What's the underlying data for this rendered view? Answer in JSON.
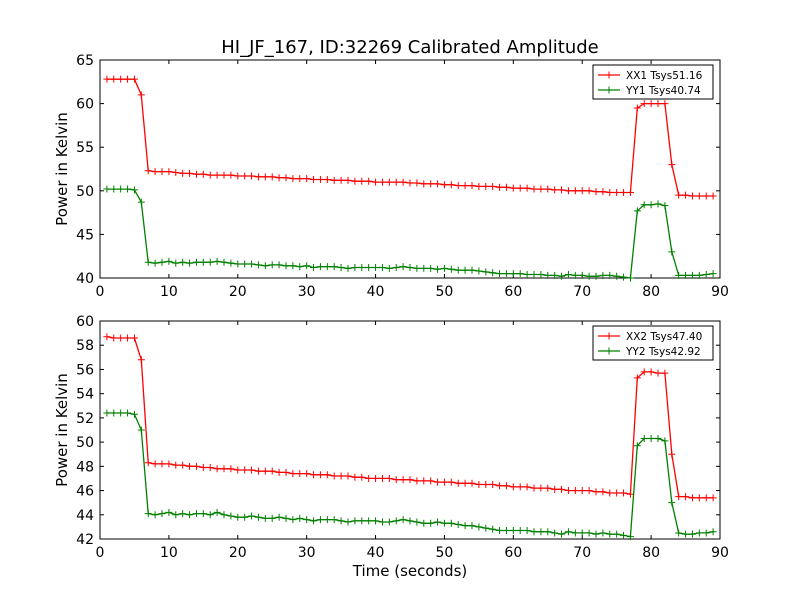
{
  "title": "HI_JF_167, ID:32269 Calibrated Amplitude",
  "chart_data": [
    {
      "type": "line",
      "ylabel": "Power in Kelvin",
      "xlabel": "",
      "xlim": [
        0,
        90
      ],
      "ylim": [
        40,
        65
      ],
      "xticks": [
        "0",
        "10",
        "20",
        "30",
        "40",
        "50",
        "60",
        "70",
        "80",
        "90"
      ],
      "yticks": [
        "40",
        "45",
        "50",
        "55",
        "60",
        "65"
      ],
      "legend_position": "top-right",
      "series": [
        {
          "name": "XX1 Tsys51.16",
          "color": "#ff0000",
          "x": [
            1,
            2,
            3,
            4,
            5,
            6,
            7,
            8,
            9,
            10,
            11,
            12,
            13,
            14,
            15,
            16,
            17,
            18,
            19,
            20,
            21,
            22,
            23,
            24,
            25,
            26,
            27,
            28,
            29,
            30,
            31,
            32,
            33,
            34,
            35,
            36,
            37,
            38,
            39,
            40,
            41,
            42,
            43,
            44,
            45,
            46,
            47,
            48,
            49,
            50,
            51,
            52,
            53,
            54,
            55,
            56,
            57,
            58,
            59,
            60,
            61,
            62,
            63,
            64,
            65,
            66,
            67,
            68,
            69,
            70,
            71,
            72,
            73,
            74,
            75,
            76,
            77,
            78,
            79,
            80,
            81,
            82,
            83,
            84,
            85,
            86,
            87,
            88,
            89
          ],
          "y": [
            62.8,
            62.8,
            62.8,
            62.8,
            62.8,
            61.0,
            52.3,
            52.2,
            52.2,
            52.2,
            52.1,
            52.0,
            52.0,
            51.9,
            51.9,
            51.8,
            51.8,
            51.8,
            51.8,
            51.7,
            51.7,
            51.7,
            51.6,
            51.6,
            51.6,
            51.5,
            51.5,
            51.4,
            51.4,
            51.4,
            51.3,
            51.3,
            51.3,
            51.2,
            51.2,
            51.2,
            51.1,
            51.1,
            51.1,
            51.0,
            51.0,
            51.0,
            51.0,
            51.0,
            50.9,
            50.9,
            50.8,
            50.8,
            50.8,
            50.7,
            50.7,
            50.6,
            50.6,
            50.6,
            50.5,
            50.5,
            50.5,
            50.4,
            50.4,
            50.3,
            50.3,
            50.3,
            50.2,
            50.2,
            50.2,
            50.1,
            50.1,
            50.0,
            50.0,
            50.0,
            50.0,
            49.9,
            49.9,
            49.8,
            49.8,
            49.8,
            49.8,
            59.5,
            60.0,
            60.0,
            60.0,
            60.0,
            53.0,
            49.5,
            49.5,
            49.4,
            49.4,
            49.4,
            49.4
          ]
        },
        {
          "name": "YY1 Tsys40.74",
          "color": "#008000",
          "x": [
            1,
            2,
            3,
            4,
            5,
            6,
            7,
            8,
            9,
            10,
            11,
            12,
            13,
            14,
            15,
            16,
            17,
            18,
            19,
            20,
            21,
            22,
            23,
            24,
            25,
            26,
            27,
            28,
            29,
            30,
            31,
            32,
            33,
            34,
            35,
            36,
            37,
            38,
            39,
            40,
            41,
            42,
            43,
            44,
            45,
            46,
            47,
            48,
            49,
            50,
            51,
            52,
            53,
            54,
            55,
            56,
            57,
            58,
            59,
            60,
            61,
            62,
            63,
            64,
            65,
            66,
            67,
            68,
            69,
            70,
            71,
            72,
            73,
            74,
            75,
            76,
            77,
            78,
            79,
            80,
            81,
            82,
            83,
            84,
            85,
            86,
            87,
            88,
            89
          ],
          "y": [
            50.2,
            50.2,
            50.2,
            50.2,
            50.1,
            48.7,
            41.8,
            41.7,
            41.8,
            41.9,
            41.7,
            41.8,
            41.7,
            41.8,
            41.8,
            41.8,
            41.9,
            41.8,
            41.7,
            41.6,
            41.6,
            41.6,
            41.5,
            41.4,
            41.5,
            41.5,
            41.4,
            41.4,
            41.3,
            41.4,
            41.2,
            41.3,
            41.3,
            41.3,
            41.2,
            41.1,
            41.2,
            41.2,
            41.2,
            41.2,
            41.2,
            41.1,
            41.2,
            41.3,
            41.2,
            41.1,
            41.1,
            41.1,
            41.0,
            41.1,
            41.0,
            40.9,
            40.9,
            40.9,
            40.8,
            40.7,
            40.6,
            40.5,
            40.5,
            40.5,
            40.5,
            40.4,
            40.4,
            40.4,
            40.3,
            40.3,
            40.2,
            40.4,
            40.3,
            40.3,
            40.2,
            40.2,
            40.3,
            40.3,
            40.2,
            40.1,
            40.0,
            47.7,
            48.4,
            48.4,
            48.5,
            48.3,
            43.0,
            40.3,
            40.3,
            40.3,
            40.3,
            40.4,
            40.5
          ]
        }
      ]
    },
    {
      "type": "line",
      "ylabel": "Power in Kelvin",
      "xlabel": "Time (seconds)",
      "xlim": [
        0,
        90
      ],
      "ylim": [
        42,
        60
      ],
      "xticks": [
        "0",
        "10",
        "20",
        "30",
        "40",
        "50",
        "60",
        "70",
        "80",
        "90"
      ],
      "yticks": [
        "42",
        "44",
        "46",
        "48",
        "50",
        "52",
        "54",
        "56",
        "58",
        "60"
      ],
      "legend_position": "top-right",
      "series": [
        {
          "name": "XX2 Tsys47.40",
          "color": "#ff0000",
          "x": [
            1,
            2,
            3,
            4,
            5,
            6,
            7,
            8,
            9,
            10,
            11,
            12,
            13,
            14,
            15,
            16,
            17,
            18,
            19,
            20,
            21,
            22,
            23,
            24,
            25,
            26,
            27,
            28,
            29,
            30,
            31,
            32,
            33,
            34,
            35,
            36,
            37,
            38,
            39,
            40,
            41,
            42,
            43,
            44,
            45,
            46,
            47,
            48,
            49,
            50,
            51,
            52,
            53,
            54,
            55,
            56,
            57,
            58,
            59,
            60,
            61,
            62,
            63,
            64,
            65,
            66,
            67,
            68,
            69,
            70,
            71,
            72,
            73,
            74,
            75,
            76,
            77,
            78,
            79,
            80,
            81,
            82,
            83,
            84,
            85,
            86,
            87,
            88,
            89
          ],
          "y": [
            58.7,
            58.6,
            58.6,
            58.6,
            58.6,
            56.8,
            48.3,
            48.2,
            48.2,
            48.2,
            48.1,
            48.1,
            48.0,
            48.0,
            47.9,
            47.9,
            47.8,
            47.8,
            47.8,
            47.7,
            47.7,
            47.7,
            47.6,
            47.6,
            47.6,
            47.5,
            47.5,
            47.4,
            47.4,
            47.4,
            47.3,
            47.3,
            47.3,
            47.2,
            47.2,
            47.2,
            47.1,
            47.1,
            47.0,
            47.0,
            47.0,
            47.0,
            46.9,
            46.9,
            46.9,
            46.8,
            46.8,
            46.8,
            46.7,
            46.7,
            46.7,
            46.6,
            46.6,
            46.6,
            46.5,
            46.5,
            46.5,
            46.4,
            46.4,
            46.3,
            46.3,
            46.3,
            46.2,
            46.2,
            46.2,
            46.1,
            46.1,
            46.0,
            46.0,
            46.0,
            46.0,
            45.9,
            45.9,
            45.8,
            45.8,
            45.8,
            45.7,
            55.3,
            55.8,
            55.8,
            55.7,
            55.7,
            49.0,
            45.5,
            45.5,
            45.4,
            45.4,
            45.4,
            45.4
          ]
        },
        {
          "name": "YY2 Tsys42.92",
          "color": "#008000",
          "x": [
            1,
            2,
            3,
            4,
            5,
            6,
            7,
            8,
            9,
            10,
            11,
            12,
            13,
            14,
            15,
            16,
            17,
            18,
            19,
            20,
            21,
            22,
            23,
            24,
            25,
            26,
            27,
            28,
            29,
            30,
            31,
            32,
            33,
            34,
            35,
            36,
            37,
            38,
            39,
            40,
            41,
            42,
            43,
            44,
            45,
            46,
            47,
            48,
            49,
            50,
            51,
            52,
            53,
            54,
            55,
            56,
            57,
            58,
            59,
            60,
            61,
            62,
            63,
            64,
            65,
            66,
            67,
            68,
            69,
            70,
            71,
            72,
            73,
            74,
            75,
            76,
            77,
            78,
            79,
            80,
            81,
            82,
            83,
            84,
            85,
            86,
            87,
            88,
            89
          ],
          "y": [
            52.4,
            52.4,
            52.4,
            52.4,
            52.3,
            51.0,
            44.1,
            44.0,
            44.1,
            44.2,
            44.0,
            44.1,
            44.0,
            44.1,
            44.1,
            44.0,
            44.2,
            44.0,
            43.9,
            43.8,
            43.8,
            43.9,
            43.8,
            43.7,
            43.7,
            43.8,
            43.7,
            43.6,
            43.7,
            43.6,
            43.5,
            43.6,
            43.6,
            43.6,
            43.5,
            43.4,
            43.5,
            43.5,
            43.5,
            43.5,
            43.4,
            43.4,
            43.5,
            43.6,
            43.5,
            43.4,
            43.3,
            43.3,
            43.4,
            43.3,
            43.3,
            43.2,
            43.1,
            43.1,
            43.0,
            42.9,
            42.8,
            42.7,
            42.7,
            42.7,
            42.7,
            42.7,
            42.6,
            42.6,
            42.6,
            42.5,
            42.4,
            42.6,
            42.5,
            42.5,
            42.5,
            42.4,
            42.5,
            42.4,
            42.4,
            42.3,
            42.2,
            49.7,
            50.3,
            50.3,
            50.3,
            50.1,
            45.0,
            42.5,
            42.4,
            42.4,
            42.5,
            42.5,
            42.6
          ]
        }
      ]
    }
  ]
}
